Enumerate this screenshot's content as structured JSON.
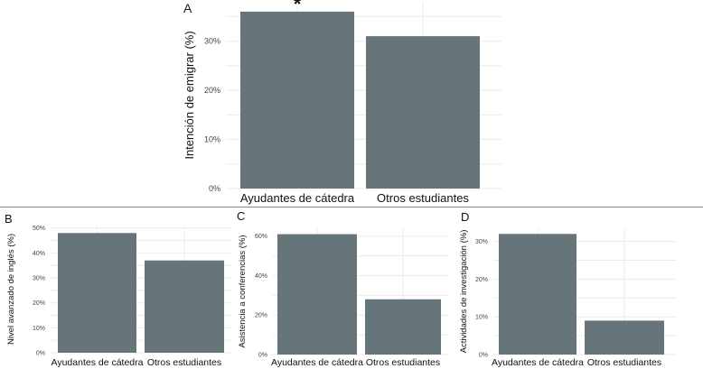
{
  "chart_data": [
    {
      "panel": "A",
      "type": "bar",
      "categories": [
        "Ayudantes de cátedra",
        "Otros estudiantes"
      ],
      "values": [
        36,
        31
      ],
      "ylabel": "Intención de emigrar (%)",
      "ylim": [
        0,
        38
      ],
      "yticks": [
        0,
        10,
        20,
        30
      ],
      "ytick_labels": [
        "0%",
        "10%",
        "20%",
        "30%"
      ],
      "annotation": "*",
      "annotation_category": "Ayudantes de cátedra"
    },
    {
      "panel": "B",
      "type": "bar",
      "categories": [
        "Ayudantes de cátedra",
        "Otros estudiantes"
      ],
      "values": [
        48,
        37
      ],
      "ylabel": "Nivel avanzado de inglés (%)",
      "ylim": [
        0,
        51
      ],
      "yticks": [
        0,
        10,
        20,
        30,
        40,
        50
      ],
      "ytick_labels": [
        "0%",
        "10%",
        "20%",
        "30%",
        "40%",
        "50%"
      ]
    },
    {
      "panel": "C",
      "type": "bar",
      "categories": [
        "Ayudantes de cátedra",
        "Otros estudiantes"
      ],
      "values": [
        61,
        28
      ],
      "ylabel": "Asistencia a conferencias (%)",
      "ylim": [
        0,
        64
      ],
      "yticks": [
        0,
        20,
        40,
        60
      ],
      "ytick_labels": [
        "0%",
        "20%",
        "40%",
        "60%"
      ]
    },
    {
      "panel": "D",
      "type": "bar",
      "categories": [
        "Ayudantes de cátedra",
        "Otros estudiantes"
      ],
      "values": [
        32,
        9
      ],
      "ylabel": "Actividades de investigación (%)",
      "ylim": [
        0,
        33.5
      ],
      "yticks": [
        0,
        10,
        20,
        30
      ],
      "ytick_labels": [
        "0%",
        "10%",
        "20%",
        "30%"
      ]
    }
  ],
  "colors": {
    "bar": "#65757a",
    "grid": "#ebebeb",
    "separator": "#888888"
  }
}
